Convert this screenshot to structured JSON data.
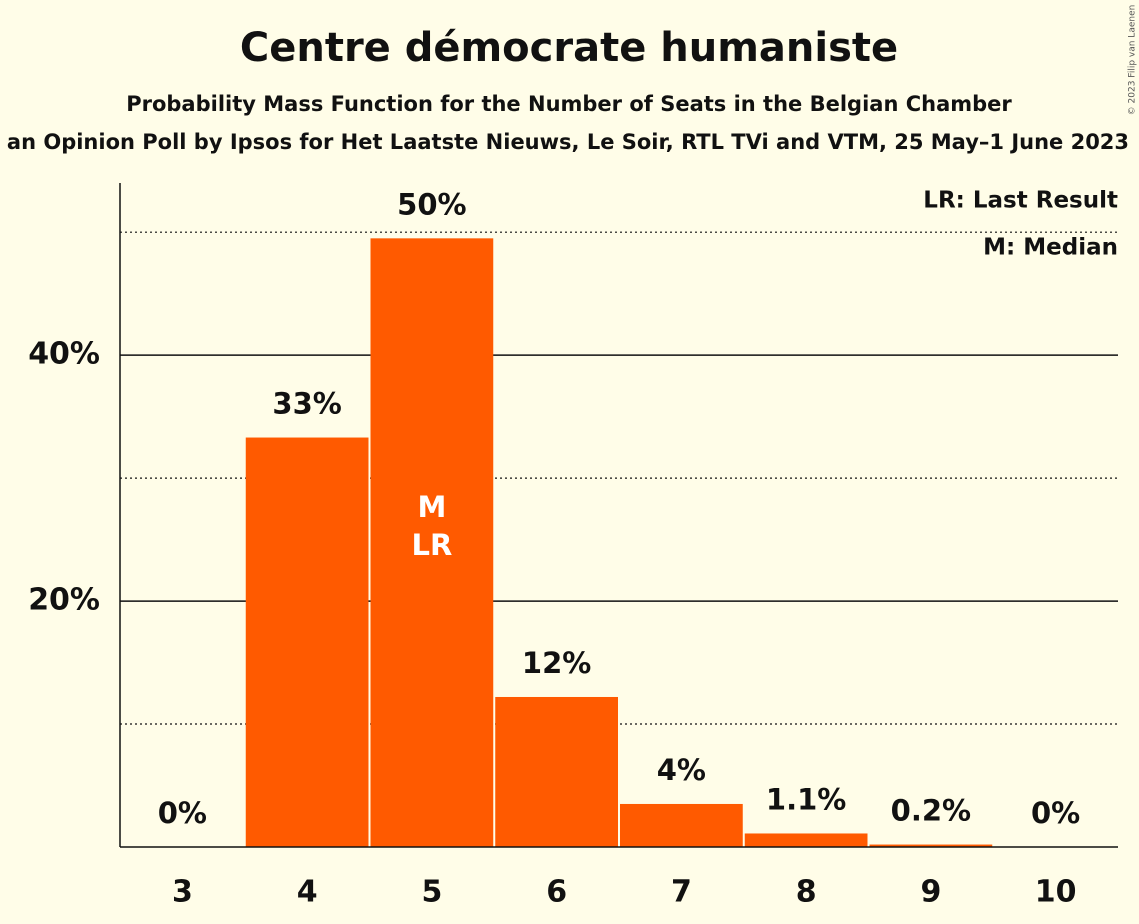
{
  "chart_data": {
    "type": "bar",
    "title": "Centre démocrate humaniste",
    "subtitle": "Probability Mass Function for the Number of Seats in the Belgian Chamber",
    "source": "Based on an Opinion Poll by Ipsos for Het Laatste Nieuws, Le Soir, RTL TVi and VTM, 25 May–1 June 2023",
    "copyright": "© 2023 Filip van Laenen",
    "categories": [
      "3",
      "4",
      "5",
      "6",
      "7",
      "8",
      "9",
      "10"
    ],
    "values": [
      0,
      33.3,
      49.5,
      12.2,
      3.5,
      1.1,
      0.2,
      0
    ],
    "value_labels": [
      "0%",
      "33%",
      "50%",
      "12%",
      "4%",
      "1.1%",
      "0.2%",
      "0%"
    ],
    "color": "#ff5a00",
    "ylim": [
      0,
      54
    ],
    "yticks": [
      {
        "value": 20,
        "label": "20%"
      },
      {
        "value": 40,
        "label": "40%"
      }
    ],
    "minor_gridlines": [
      10,
      30,
      50
    ],
    "grid": true,
    "annotations": [
      {
        "x": "5",
        "text": "M"
      },
      {
        "x": "5",
        "text": "LR"
      }
    ],
    "legend": [
      "LR: Last Result",
      "M: Median"
    ],
    "legend_position": "top-right"
  }
}
